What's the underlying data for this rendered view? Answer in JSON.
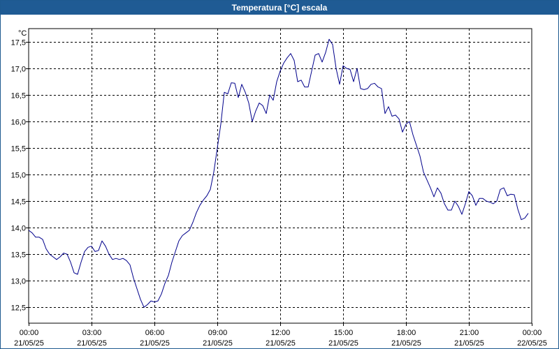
{
  "window": {
    "title": "Temperatura [°C] escala"
  },
  "colors": {
    "titlebar": "#1f5b94",
    "series": "#00008b",
    "grid": "#000000"
  },
  "chart_data": {
    "type": "line",
    "title": "Temperatura [°C] escala",
    "ylabel": "°C",
    "xlabel": "",
    "ylim": [
      12.2,
      17.75
    ],
    "xlim": [
      "21/05/25 00:00",
      "22/05/25 00:00"
    ],
    "grid": true,
    "legend": "none",
    "yticks": [
      {
        "value": 12.5,
        "label": "12,5"
      },
      {
        "value": 13.0,
        "label": "13,0"
      },
      {
        "value": 13.5,
        "label": "13,5"
      },
      {
        "value": 14.0,
        "label": "14,0"
      },
      {
        "value": 14.5,
        "label": "14,5"
      },
      {
        "value": 15.0,
        "label": "15,0"
      },
      {
        "value": 15.5,
        "label": "15,5"
      },
      {
        "value": 16.0,
        "label": "16,0"
      },
      {
        "value": 16.5,
        "label": "16,5"
      },
      {
        "value": 17.0,
        "label": "17,0"
      },
      {
        "value": 17.5,
        "label": "17,5"
      }
    ],
    "xticks": [
      {
        "hour": 0,
        "time": "00:00",
        "date": "21/05/25"
      },
      {
        "hour": 3,
        "time": "03:00",
        "date": "21/05/25"
      },
      {
        "hour": 6,
        "time": "06:00",
        "date": "21/05/25"
      },
      {
        "hour": 9,
        "time": "09:00",
        "date": "21/05/25"
      },
      {
        "hour": 12,
        "time": "12:00",
        "date": "21/05/25"
      },
      {
        "hour": 15,
        "time": "15:00",
        "date": "21/05/25"
      },
      {
        "hour": 18,
        "time": "18:00",
        "date": "21/05/25"
      },
      {
        "hour": 21,
        "time": "21:00",
        "date": "21/05/25"
      },
      {
        "hour": 24,
        "time": "00:00",
        "date": "22/05/25"
      }
    ],
    "series": [
      {
        "color": "#00008b",
        "x": [
          "00:00",
          "00:10",
          "00:20",
          "00:30",
          "00:40",
          "00:50",
          "01:00",
          "01:10",
          "01:20",
          "01:30",
          "01:40",
          "01:50",
          "02:00",
          "02:10",
          "02:20",
          "02:30",
          "02:40",
          "02:50",
          "03:00",
          "03:10",
          "03:20",
          "03:30",
          "03:40",
          "03:50",
          "04:00",
          "04:10",
          "04:20",
          "04:30",
          "04:40",
          "04:50",
          "05:00",
          "05:10",
          "05:20",
          "05:30",
          "05:40",
          "05:50",
          "06:00",
          "06:10",
          "06:20",
          "06:30",
          "06:40",
          "06:50",
          "07:00",
          "07:10",
          "07:20",
          "07:30",
          "07:40",
          "07:50",
          "08:00",
          "08:10",
          "08:20",
          "08:30",
          "08:40",
          "08:50",
          "09:00",
          "09:10",
          "09:20",
          "09:30",
          "09:40",
          "09:50",
          "10:00",
          "10:10",
          "10:20",
          "10:30",
          "10:40",
          "10:50",
          "11:00",
          "11:10",
          "11:20",
          "11:30",
          "11:40",
          "11:50",
          "12:00",
          "12:10",
          "12:20",
          "12:30",
          "12:40",
          "12:50",
          "13:00",
          "13:10",
          "13:20",
          "13:30",
          "13:40",
          "13:50",
          "14:00",
          "14:10",
          "14:20",
          "14:30",
          "14:40",
          "14:50",
          "15:00",
          "15:10",
          "15:20",
          "15:30",
          "15:40",
          "15:50",
          "16:00",
          "16:10",
          "16:20",
          "16:30",
          "16:40",
          "16:50",
          "17:00",
          "17:10",
          "17:20",
          "17:30",
          "17:40",
          "17:50",
          "18:00",
          "18:10",
          "18:20",
          "18:30",
          "18:40",
          "18:50",
          "19:00",
          "19:10",
          "19:20",
          "19:30",
          "19:40",
          "19:50",
          "20:00",
          "20:10",
          "20:20",
          "20:30",
          "20:40",
          "20:50",
          "21:00",
          "21:10",
          "21:20",
          "21:30",
          "21:40",
          "21:50",
          "22:00",
          "22:10",
          "22:20",
          "22:30",
          "22:40",
          "22:50",
          "23:00",
          "23:10",
          "23:20",
          "23:30",
          "23:40",
          "23:50"
        ],
        "y": [
          13.95,
          13.9,
          13.82,
          13.82,
          13.78,
          13.6,
          13.5,
          13.45,
          13.4,
          13.45,
          13.52,
          13.5,
          13.35,
          13.15,
          13.12,
          13.35,
          13.55,
          13.63,
          13.65,
          13.55,
          13.57,
          13.75,
          13.65,
          13.5,
          13.4,
          13.42,
          13.4,
          13.42,
          13.38,
          13.3,
          13.05,
          12.85,
          12.65,
          12.5,
          12.55,
          12.62,
          12.6,
          12.62,
          12.75,
          12.95,
          13.1,
          13.35,
          13.55,
          13.75,
          13.85,
          13.9,
          13.95,
          14.1,
          14.28,
          14.42,
          14.52,
          14.6,
          14.72,
          15.05,
          15.5,
          15.95,
          16.55,
          16.52,
          16.73,
          16.72,
          16.45,
          16.7,
          16.55,
          16.35,
          16.0,
          16.2,
          16.35,
          16.3,
          16.15,
          16.5,
          16.4,
          16.75,
          16.95,
          17.1,
          17.2,
          17.28,
          17.15,
          16.75,
          16.78,
          16.65,
          16.65,
          16.95,
          17.25,
          17.28,
          17.12,
          17.3,
          17.55,
          17.45,
          17.0,
          16.7,
          17.05,
          17.0,
          16.98,
          16.75,
          17.0,
          16.62,
          16.6,
          16.62,
          16.7,
          16.72,
          16.65,
          16.62,
          16.15,
          16.28,
          16.1,
          16.12,
          16.05,
          15.8,
          15.95,
          16.0,
          15.75,
          15.55,
          15.35,
          15.05,
          14.9,
          14.75,
          14.58,
          14.75,
          14.65,
          14.45,
          14.33,
          14.33,
          14.5,
          14.4,
          14.25,
          14.45,
          14.68,
          14.6,
          14.42,
          14.55,
          14.55,
          14.5,
          14.48,
          14.45,
          14.5,
          14.72,
          14.75,
          14.6,
          14.63,
          14.62,
          14.35,
          14.15,
          14.18,
          14.27
        ]
      }
    ]
  }
}
